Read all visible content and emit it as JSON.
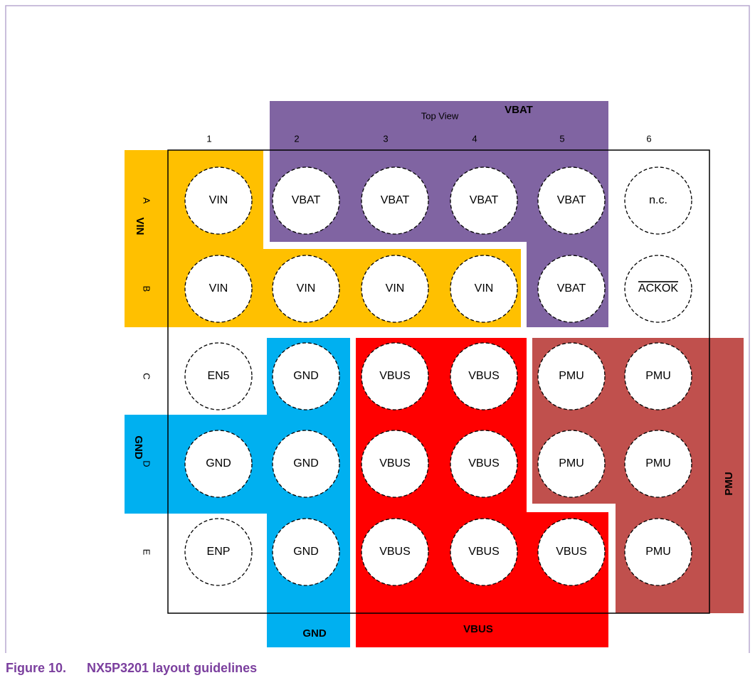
{
  "title": "Top View",
  "columns": [
    "1",
    "2",
    "3",
    "4",
    "5",
    "6"
  ],
  "rows": [
    "A",
    "B",
    "C",
    "D",
    "E"
  ],
  "pins": [
    [
      "VIN",
      "VBAT",
      "VBAT",
      "VBAT",
      "VBAT",
      "n.c."
    ],
    [
      "VIN",
      "VIN",
      "VIN",
      "VIN",
      "VBAT",
      "ACKOK"
    ],
    [
      "EN5",
      "GND",
      "VBUS",
      "VBUS",
      "PMU",
      "PMU"
    ],
    [
      "GND",
      "GND",
      "VBUS",
      "VBUS",
      "PMU",
      "PMU"
    ],
    [
      "ENP",
      "GND",
      "VBUS",
      "VBUS",
      "VBUS",
      "PMU"
    ]
  ],
  "regions": {
    "vbat": "VBAT",
    "vin": "VIN",
    "gnd_left": "GND",
    "gnd_bottom": "GND",
    "vbus": "VBUS",
    "pmu": "PMU"
  },
  "caption": {
    "number": "Figure 10.",
    "text": "NX5P3201 layout guidelines"
  }
}
